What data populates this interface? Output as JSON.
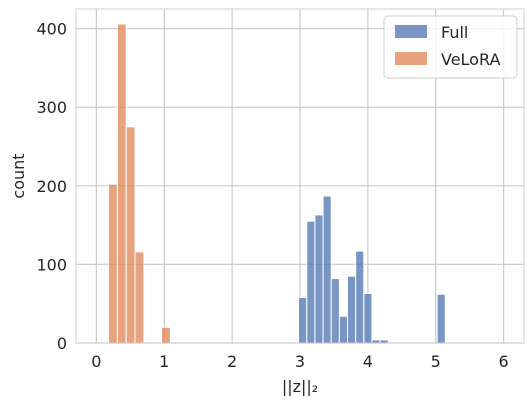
{
  "chart_data": {
    "type": "histogram",
    "xlabel": "||z||₂",
    "ylabel": "count",
    "xlim": [
      -0.3,
      6.3
    ],
    "ylim": [
      0,
      425
    ],
    "xticks": [
      "0",
      "1",
      "2",
      "3",
      "4",
      "5",
      "6"
    ],
    "yticks": [
      "0",
      "100",
      "200",
      "300",
      "400"
    ],
    "grid": true,
    "legend_position": "top-right",
    "series": [
      {
        "name": "Full",
        "color": "#4c72b0",
        "bin_start": 2.98,
        "bin_width": 0.12,
        "counts": [
          58,
          155,
          163,
          187,
          82,
          34,
          85,
          117,
          63,
          4,
          4,
          0,
          0,
          0,
          0,
          0,
          0,
          62
        ]
      },
      {
        "name": "VeLoRA",
        "color": "#dd8452",
        "bin_start": 0.18,
        "bin_width": 0.13,
        "counts": [
          202,
          406,
          275,
          116,
          0,
          0,
          20
        ]
      }
    ]
  }
}
